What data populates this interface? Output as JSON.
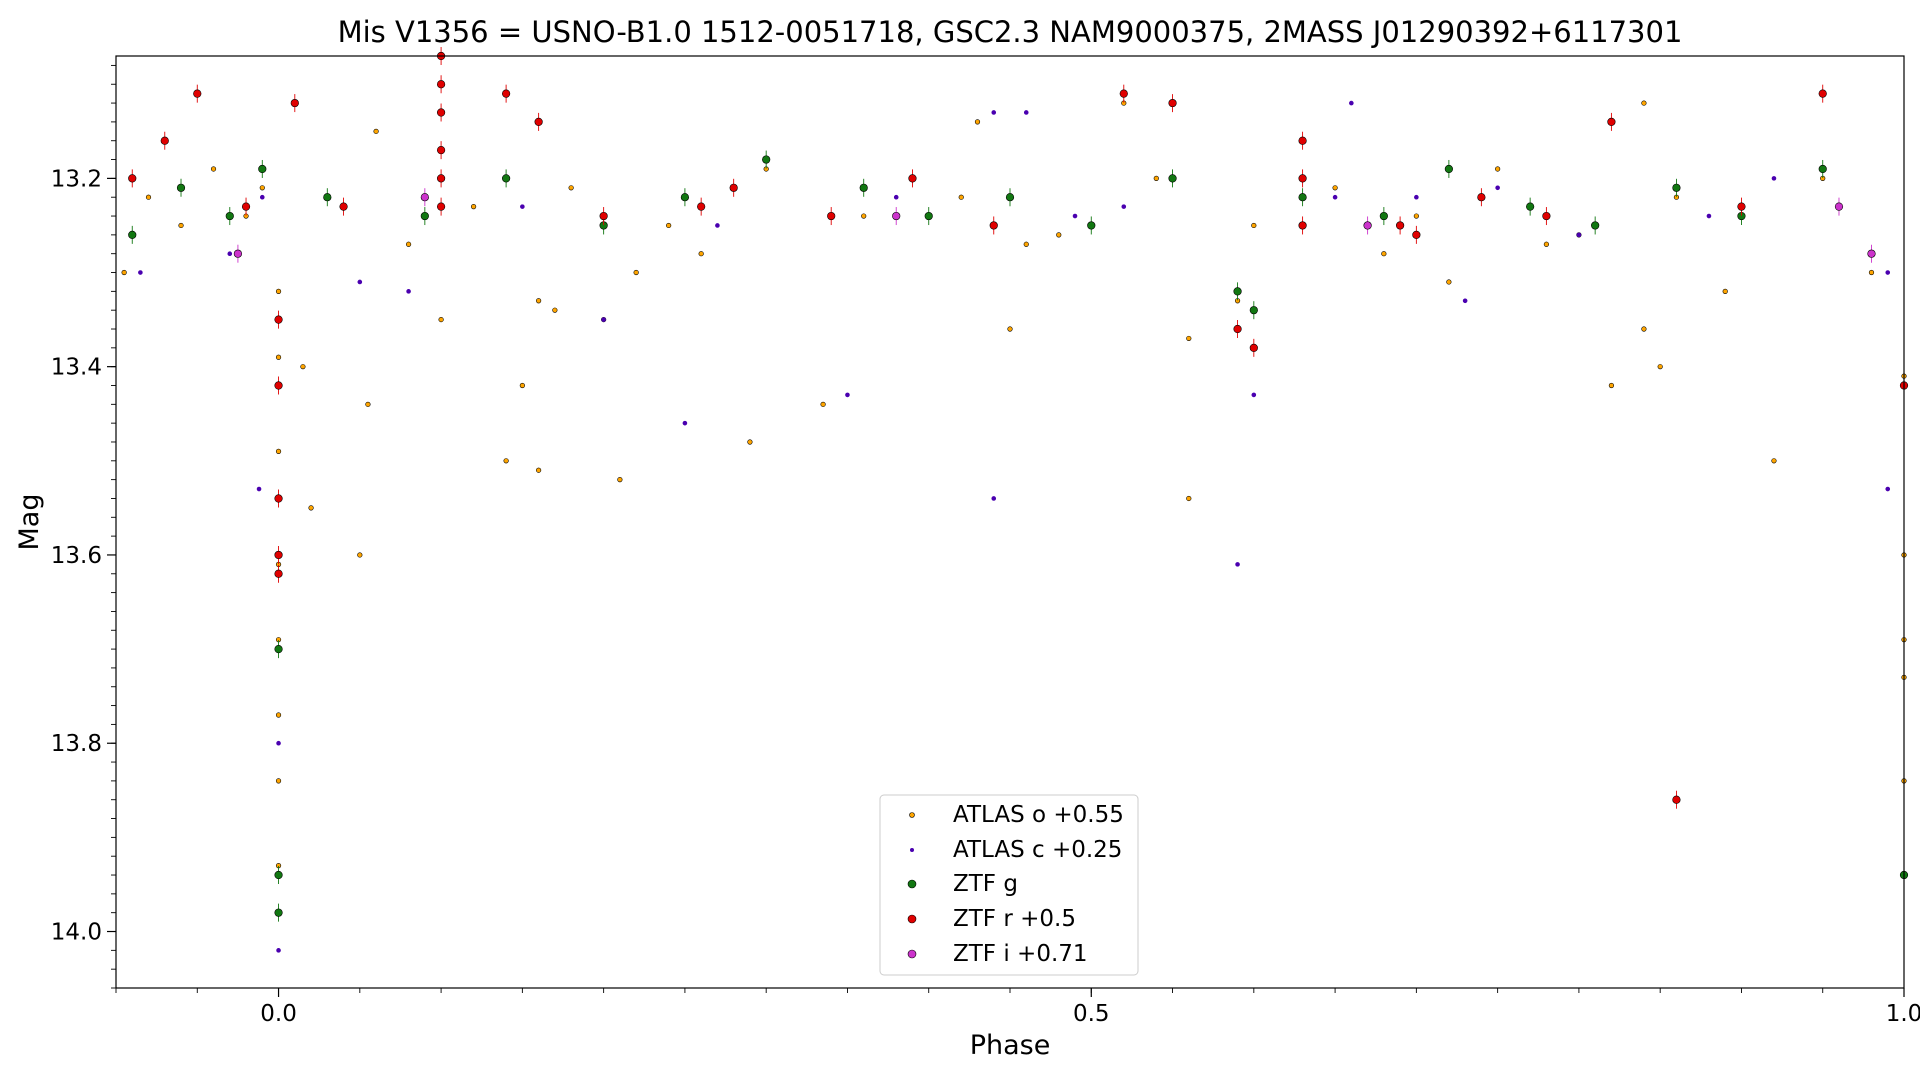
{
  "chart_data": {
    "type": "scatter",
    "title": "Mis V1356 = USNO-B1.0 1512-0051718, GSC2.3 NAM9000375, 2MASS J01290392+6117301",
    "xlabel": "Phase",
    "ylabel": "Mag",
    "xlim": [
      -0.1,
      1.0
    ],
    "ylim": [
      14.06,
      13.07
    ],
    "y_inverted": true,
    "x_ticks": [
      {
        "value": 0.0,
        "label": "0.0"
      },
      {
        "value": 0.5,
        "label": "0.5"
      },
      {
        "value": 1.0,
        "label": "1.0"
      }
    ],
    "y_ticks": [
      {
        "value": 13.2,
        "label": "13.2"
      },
      {
        "value": 13.4,
        "label": "13.4"
      },
      {
        "value": 13.6,
        "label": "13.6"
      },
      {
        "value": 13.8,
        "label": "13.8"
      },
      {
        "value": 14.0,
        "label": "14.0"
      }
    ],
    "grid": false,
    "legend_position": "bottom-center",
    "series": [
      {
        "name": "ATLAS o +0.55",
        "color": "#ffa500",
        "edge": "#000000",
        "marker": "small-circle",
        "points": [
          [
            -0.095,
            13.3
          ],
          [
            -0.08,
            13.22
          ],
          [
            -0.06,
            13.25
          ],
          [
            -0.04,
            13.19
          ],
          [
            -0.02,
            13.24
          ],
          [
            -0.01,
            13.21
          ],
          [
            0.0,
            13.32
          ],
          [
            0.0,
            13.39
          ],
          [
            0.0,
            13.49
          ],
          [
            0.0,
            13.61
          ],
          [
            0.0,
            13.69
          ],
          [
            0.0,
            13.77
          ],
          [
            0.0,
            13.84
          ],
          [
            0.0,
            13.93
          ],
          [
            0.015,
            13.4
          ],
          [
            0.02,
            13.55
          ],
          [
            0.05,
            13.6
          ],
          [
            0.055,
            13.44
          ],
          [
            0.1,
            13.35
          ],
          [
            0.14,
            13.5
          ],
          [
            0.15,
            13.42
          ],
          [
            0.17,
            13.34
          ],
          [
            0.16,
            13.33
          ],
          [
            0.16,
            13.51
          ],
          [
            0.2,
            13.35
          ],
          [
            0.21,
            13.52
          ],
          [
            0.22,
            13.3
          ],
          [
            0.29,
            13.48
          ],
          [
            0.335,
            13.44
          ],
          [
            0.45,
            13.36
          ],
          [
            0.56,
            13.54
          ],
          [
            0.56,
            13.37
          ],
          [
            0.59,
            13.33
          ],
          [
            0.72,
            13.31
          ],
          [
            0.82,
            13.42
          ],
          [
            0.84,
            13.36
          ],
          [
            0.85,
            13.4
          ],
          [
            0.89,
            13.32
          ],
          [
            0.92,
            13.5
          ],
          [
            0.98,
            13.3
          ],
          [
            1.0,
            13.41
          ],
          [
            1.0,
            13.6
          ],
          [
            1.0,
            13.69
          ],
          [
            1.0,
            13.73
          ],
          [
            1.0,
            13.84
          ],
          [
            0.12,
            13.23
          ],
          [
            0.18,
            13.21
          ],
          [
            0.24,
            13.25
          ],
          [
            0.3,
            13.19
          ],
          [
            0.36,
            13.24
          ],
          [
            0.42,
            13.22
          ],
          [
            0.48,
            13.26
          ],
          [
            0.54,
            13.2
          ],
          [
            0.6,
            13.25
          ],
          [
            0.65,
            13.21
          ],
          [
            0.7,
            13.24
          ],
          [
            0.75,
            13.19
          ],
          [
            0.8,
            13.26
          ],
          [
            0.86,
            13.22
          ],
          [
            0.9,
            13.23
          ],
          [
            0.95,
            13.2
          ],
          [
            0.06,
            13.15
          ],
          [
            0.43,
            13.14
          ],
          [
            0.52,
            13.12
          ],
          [
            0.84,
            13.12
          ],
          [
            0.08,
            13.27
          ],
          [
            0.26,
            13.28
          ],
          [
            0.46,
            13.27
          ],
          [
            0.68,
            13.28
          ],
          [
            0.78,
            13.27
          ]
        ]
      },
      {
        "name": "ATLAS c +0.25",
        "color": "#4a00b0",
        "edge": "#4a00b0",
        "marker": "dot",
        "points": [
          [
            -0.085,
            13.3
          ],
          [
            -0.03,
            13.28
          ],
          [
            -0.012,
            13.53
          ],
          [
            -0.01,
            13.22
          ],
          [
            0.0,
            13.8
          ],
          [
            0.0,
            13.98
          ],
          [
            0.0,
            14.02
          ],
          [
            0.05,
            13.31
          ],
          [
            0.08,
            13.32
          ],
          [
            0.2,
            13.35
          ],
          [
            0.25,
            13.46
          ],
          [
            0.35,
            13.43
          ],
          [
            0.44,
            13.54
          ],
          [
            0.44,
            13.13
          ],
          [
            0.46,
            13.13
          ],
          [
            0.49,
            13.24
          ],
          [
            0.59,
            13.61
          ],
          [
            0.6,
            13.43
          ],
          [
            0.65,
            13.22
          ],
          [
            0.66,
            13.12
          ],
          [
            0.7,
            13.22
          ],
          [
            0.73,
            13.33
          ],
          [
            0.8,
            13.26
          ],
          [
            0.92,
            13.2
          ],
          [
            0.99,
            13.53
          ],
          [
            0.99,
            13.3
          ],
          [
            0.15,
            13.23
          ],
          [
            0.27,
            13.25
          ],
          [
            0.38,
            13.22
          ],
          [
            0.52,
            13.23
          ],
          [
            0.75,
            13.21
          ],
          [
            0.88,
            13.24
          ]
        ]
      },
      {
        "name": "ZTF g",
        "color": "#117711",
        "edge": "#000000",
        "marker": "circle",
        "points": [
          [
            -0.09,
            13.26
          ],
          [
            -0.06,
            13.21
          ],
          [
            -0.03,
            13.24
          ],
          [
            -0.01,
            13.19
          ],
          [
            0.0,
            13.7
          ],
          [
            0.0,
            13.94
          ],
          [
            0.0,
            13.98
          ],
          [
            0.03,
            13.22
          ],
          [
            0.09,
            13.24
          ],
          [
            0.14,
            13.2
          ],
          [
            0.2,
            13.25
          ],
          [
            0.25,
            13.22
          ],
          [
            0.3,
            13.18
          ],
          [
            0.36,
            13.21
          ],
          [
            0.4,
            13.24
          ],
          [
            0.45,
            13.22
          ],
          [
            0.5,
            13.25
          ],
          [
            0.55,
            13.2
          ],
          [
            0.59,
            13.32
          ],
          [
            0.6,
            13.34
          ],
          [
            0.63,
            13.22
          ],
          [
            0.68,
            13.24
          ],
          [
            0.72,
            13.19
          ],
          [
            0.77,
            13.23
          ],
          [
            0.81,
            13.25
          ],
          [
            0.86,
            13.21
          ],
          [
            0.9,
            13.24
          ],
          [
            0.95,
            13.19
          ],
          [
            1.0,
            13.94
          ]
        ]
      },
      {
        "name": "ZTF r +0.5",
        "color": "#e00000",
        "edge": "#000000",
        "marker": "circle",
        "points": [
          [
            -0.09,
            13.2
          ],
          [
            -0.07,
            13.16
          ],
          [
            -0.05,
            13.11
          ],
          [
            -0.02,
            13.23
          ],
          [
            0.0,
            13.35
          ],
          [
            0.0,
            13.42
          ],
          [
            0.0,
            13.54
          ],
          [
            0.0,
            13.6
          ],
          [
            0.0,
            13.62
          ],
          [
            0.01,
            13.12
          ],
          [
            0.04,
            13.23
          ],
          [
            0.1,
            13.07
          ],
          [
            0.1,
            13.1
          ],
          [
            0.1,
            13.13
          ],
          [
            0.1,
            13.17
          ],
          [
            0.1,
            13.2
          ],
          [
            0.1,
            13.23
          ],
          [
            0.14,
            13.11
          ],
          [
            0.16,
            13.14
          ],
          [
            0.2,
            13.24
          ],
          [
            0.26,
            13.23
          ],
          [
            0.28,
            13.21
          ],
          [
            0.34,
            13.24
          ],
          [
            0.39,
            13.2
          ],
          [
            0.44,
            13.25
          ],
          [
            0.52,
            13.11
          ],
          [
            0.55,
            13.12
          ],
          [
            0.59,
            13.36
          ],
          [
            0.6,
            13.38
          ],
          [
            0.63,
            13.16
          ],
          [
            0.63,
            13.2
          ],
          [
            0.63,
            13.25
          ],
          [
            0.69,
            13.25
          ],
          [
            0.7,
            13.26
          ],
          [
            0.74,
            13.22
          ],
          [
            0.78,
            13.24
          ],
          [
            0.82,
            13.14
          ],
          [
            0.86,
            13.86
          ],
          [
            0.9,
            13.23
          ],
          [
            0.95,
            13.11
          ],
          [
            1.0,
            13.42
          ]
        ]
      },
      {
        "name": "ZTF i +0.71",
        "color": "#cc33cc",
        "edge": "#000000",
        "marker": "circle",
        "points": [
          [
            -0.025,
            13.28
          ],
          [
            0.09,
            13.22
          ],
          [
            0.38,
            13.24
          ],
          [
            0.67,
            13.25
          ],
          [
            0.96,
            13.23
          ],
          [
            0.98,
            13.28
          ]
        ]
      }
    ]
  }
}
